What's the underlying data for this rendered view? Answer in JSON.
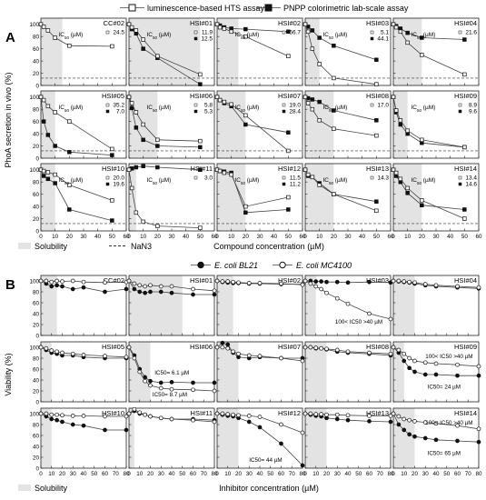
{
  "figure": {
    "panel_a_letter": "A",
    "panel_b_letter": "B",
    "legend_a": {
      "hts": "luminescence-based HTS assay",
      "pnpp": "PNPP colorimetric lab-scale assay"
    },
    "legend_b": {
      "bl21": "E. coli BL21",
      "mc4100": "E. coli MC4100"
    },
    "ylabel_a": "PhoA secretion in vivo (%)",
    "xlabel_a": "Compound concentration (µM)",
    "ylabel_b": "Viability (%)",
    "xlabel_b": "Inhibitor concentration (µM)",
    "solubility_label": "Solubility",
    "nan3_label": "NaN3",
    "colors": {
      "open": "#ffffff",
      "filled": "#111111",
      "shade": "#e3e3e3",
      "line": "#444444"
    }
  },
  "chart_data": [
    {
      "type": "line",
      "panel": "A",
      "ylim": [
        0,
        110
      ],
      "yticks": [
        0,
        20,
        40,
        60,
        80,
        100
      ],
      "xlim": [
        0,
        60
      ],
      "xticks": [
        0,
        10,
        20,
        30,
        40,
        50,
        60
      ],
      "nan3_level": 12,
      "series_names": [
        "luminescence-based HTS assay",
        "PNPP colorimetric lab-scale assay"
      ],
      "subplots": [
        {
          "title": "CC#02",
          "sol": 15,
          "x": [
            0,
            2,
            5,
            10,
            20,
            50
          ],
          "open": [
            100,
            96,
            90,
            78,
            65,
            64
          ],
          "filled": null,
          "ic": [
            "24.5",
            ""
          ]
        },
        {
          "title": "HSI#01",
          "sol": 50,
          "x": [
            0,
            2,
            5,
            10,
            20,
            50
          ],
          "open": [
            100,
            95,
            90,
            75,
            48,
            18
          ],
          "filled": [
            100,
            92,
            85,
            60,
            45,
            2
          ],
          "ic": [
            "11.9",
            "12.5"
          ]
        },
        {
          "title": "HSI#02",
          "sol": 15,
          "x": [
            0,
            2,
            5,
            10,
            20,
            50
          ],
          "open": [
            100,
            95,
            93,
            88,
            80,
            48
          ],
          "filled": [
            100,
            98,
            95,
            93,
            92,
            88
          ],
          "ic": [
            "56.7",
            ""
          ]
        },
        {
          "title": "HSI#03",
          "sol": 10,
          "x": [
            0,
            2,
            5,
            10,
            20,
            50
          ],
          "open": [
            100,
            88,
            60,
            35,
            12,
            2
          ],
          "filled": [
            100,
            96,
            90,
            78,
            65,
            42
          ],
          "ic": [
            "5.1",
            "44.1"
          ]
        },
        {
          "title": "HSI#04",
          "sol": 20,
          "x": [
            0,
            2,
            5,
            10,
            20,
            50
          ],
          "open": [
            100,
            95,
            88,
            70,
            50,
            18
          ],
          "filled": [
            100,
            97,
            93,
            86,
            78,
            75
          ],
          "ic": [
            "21.6",
            ""
          ]
        },
        {
          "title": "HSI#05",
          "sol": 10,
          "x": [
            0,
            2,
            5,
            10,
            20,
            50
          ],
          "open": [
            100,
            95,
            85,
            75,
            60,
            15
          ],
          "filled": [
            100,
            60,
            38,
            20,
            10,
            5
          ],
          "ic": [
            "35.2",
            "7.0"
          ]
        },
        {
          "title": "HSI#06",
          "sol": 20,
          "x": [
            0,
            2,
            5,
            10,
            20,
            50
          ],
          "open": [
            100,
            90,
            75,
            55,
            30,
            28
          ],
          "filled": [
            100,
            82,
            50,
            30,
            20,
            18
          ],
          "ic": [
            "5.8",
            "5.3"
          ]
        },
        {
          "title": "HSI#07",
          "sol": 20,
          "x": [
            0,
            2,
            5,
            10,
            20,
            50
          ],
          "open": [
            100,
            95,
            92,
            88,
            70,
            12
          ],
          "filled": [
            100,
            95,
            90,
            85,
            55,
            42
          ],
          "ic": [
            "19.0",
            "28.4"
          ]
        },
        {
          "title": "HSI#08",
          "sol": 20,
          "x": [
            0,
            2,
            5,
            10,
            20,
            50
          ],
          "open": [
            100,
            90,
            80,
            62,
            48,
            37
          ],
          "filled": [
            100,
            98,
            96,
            92,
            78,
            62
          ],
          "ic": [
            "17.0",
            ""
          ]
        },
        {
          "title": "HSI#09",
          "sol": 10,
          "x": [
            0,
            2,
            5,
            10,
            20,
            50
          ],
          "open": [
            100,
            78,
            62,
            45,
            30,
            18
          ],
          "filled": [
            100,
            75,
            55,
            40,
            25,
            18
          ],
          "ic": [
            "8.9",
            "9.6"
          ]
        },
        {
          "title": "HSI#10",
          "sol": 10,
          "x": [
            0,
            2,
            5,
            10,
            20,
            50
          ],
          "open": [
            100,
            98,
            96,
            92,
            75,
            50
          ],
          "filled": [
            100,
            90,
            85,
            78,
            35,
            17
          ],
          "ic": [
            "20.0",
            "19.6"
          ]
        },
        {
          "title": "HSI#11",
          "sol": 5,
          "x": [
            0,
            2,
            5,
            10,
            20,
            50
          ],
          "open": [
            100,
            70,
            30,
            15,
            8,
            5
          ],
          "filled": [
            100,
            102,
            104,
            106,
            104,
            100
          ],
          "ic": [
            "3.0",
            ""
          ]
        },
        {
          "title": "HSI#12",
          "sol": 20,
          "x": [
            0,
            2,
            5,
            10,
            20,
            50
          ],
          "open": [
            100,
            98,
            95,
            92,
            40,
            55
          ],
          "filled": [
            100,
            98,
            97,
            95,
            30,
            35
          ],
          "ic": [
            "11.5",
            "11.2"
          ]
        },
        {
          "title": "HSI#13",
          "sol": 20,
          "x": [
            0,
            2,
            5,
            10,
            20,
            50
          ],
          "open": [
            100,
            92,
            88,
            75,
            60,
            33
          ],
          "filled": [
            100,
            90,
            88,
            78,
            60,
            48
          ],
          "ic": [
            "14.3",
            ""
          ]
        },
        {
          "title": "HSI#14",
          "sol": 20,
          "x": [
            0,
            2,
            5,
            10,
            20,
            50
          ],
          "open": [
            100,
            95,
            85,
            70,
            50,
            20
          ],
          "filled": [
            100,
            90,
            80,
            62,
            42,
            35
          ],
          "ic": [
            "13.4",
            "14.6"
          ]
        }
      ]
    },
    {
      "type": "line",
      "panel": "B",
      "ylim": [
        0,
        110
      ],
      "yticks": [
        0,
        20,
        40,
        60,
        80,
        100
      ],
      "xlim": [
        0,
        80
      ],
      "xticks": [
        0,
        10,
        20,
        30,
        40,
        50,
        60,
        70,
        80
      ],
      "series_names": [
        "E. coli BL21",
        "E. coli MC4100"
      ],
      "subplots": [
        {
          "title": "CC#02",
          "sol": 15,
          "x": [
            0,
            5,
            10,
            15,
            20,
            30,
            40,
            60,
            80
          ],
          "filled": [
            100,
            95,
            90,
            92,
            90,
            85,
            88,
            80,
            85
          ],
          "open": [
            100,
            100,
            98,
            100,
            99,
            100,
            98,
            97,
            98
          ],
          "ann": []
        },
        {
          "title": "HSI#01",
          "sol": 50,
          "x": [
            0,
            5,
            10,
            15,
            20,
            30,
            40,
            60,
            80
          ],
          "filled": [
            100,
            85,
            80,
            78,
            80,
            80,
            78,
            75,
            75
          ],
          "open": [
            100,
            95,
            92,
            90,
            92,
            90,
            90,
            85,
            82
          ],
          "ann": []
        },
        {
          "title": "HSI#02",
          "sol": 15,
          "x": [
            0,
            5,
            10,
            15,
            20,
            30,
            40,
            60,
            80
          ],
          "filled": [
            100,
            98,
            97,
            96,
            96,
            95,
            95,
            94,
            94
          ],
          "open": [
            100,
            99,
            99,
            98,
            97,
            96,
            96,
            95,
            93
          ],
          "ann": []
        },
        {
          "title": "HSI#03",
          "sol": 10,
          "x": [
            0,
            5,
            10,
            15,
            20,
            30,
            40,
            60,
            80
          ],
          "filled": [
            100,
            100,
            99,
            99,
            98,
            98,
            97,
            98,
            97
          ],
          "open": [
            100,
            95,
            90,
            85,
            78,
            68,
            58,
            40,
            30
          ],
          "ann": [
            {
              "text": "100< IC50 >40 µM",
              "x": 28,
              "y": 22
            }
          ]
        },
        {
          "title": "HSI#04",
          "sol": 20,
          "x": [
            0,
            5,
            10,
            15,
            20,
            30,
            40,
            60,
            80
          ],
          "filled": [
            100,
            99,
            98,
            97,
            95,
            92,
            90,
            88,
            86
          ],
          "open": [
            100,
            100,
            99,
            98,
            97,
            94,
            92,
            90,
            88
          ],
          "ann": []
        },
        {
          "title": "HSI#05",
          "sol": 10,
          "x": [
            0,
            5,
            10,
            15,
            20,
            30,
            40,
            60,
            80
          ],
          "filled": [
            100,
            95,
            90,
            88,
            85,
            85,
            82,
            80,
            80
          ],
          "open": [
            100,
            98,
            94,
            92,
            90,
            88,
            86,
            84,
            82
          ],
          "ann": []
        },
        {
          "title": "HSI#06",
          "sol": 20,
          "x": [
            0,
            5,
            10,
            15,
            20,
            30,
            40,
            60,
            80
          ],
          "filled": [
            100,
            85,
            60,
            45,
            38,
            35,
            36,
            35,
            35
          ],
          "open": [
            100,
            80,
            55,
            38,
            30,
            25,
            23,
            22,
            20
          ],
          "ann": [
            {
              "text": "IC50= 6.1 µM",
              "x": 24,
              "y": 50
            },
            {
              "text": "IC50= 8.7 µM",
              "x": 22,
              "y": 10
            }
          ]
        },
        {
          "title": "HSI#07",
          "sol": 20,
          "x": [
            0,
            5,
            10,
            15,
            20,
            30,
            40,
            60,
            80
          ],
          "filled": [
            100,
            108,
            105,
            90,
            82,
            80,
            82,
            80,
            80
          ],
          "open": [
            100,
            100,
            98,
            92,
            88,
            85,
            84,
            80,
            75
          ],
          "ann": []
        },
        {
          "title": "HSI#08",
          "sol": 20,
          "x": [
            0,
            5,
            10,
            15,
            20,
            30,
            40,
            60,
            80
          ],
          "filled": [
            100,
            100,
            98,
            98,
            96,
            92,
            90,
            88,
            85
          ],
          "open": [
            100,
            100,
            99,
            98,
            97,
            95,
            92,
            90,
            88
          ],
          "ann": []
        },
        {
          "title": "HSI#09",
          "sol": 10,
          "x": [
            0,
            5,
            10,
            15,
            20,
            30,
            40,
            60,
            80
          ],
          "filled": [
            100,
            90,
            75,
            62,
            55,
            50,
            50,
            48,
            48
          ],
          "open": [
            100,
            95,
            88,
            80,
            75,
            72,
            70,
            68,
            65
          ],
          "ann": [
            {
              "text": "100< IC50 >40 µM",
              "x": 30,
              "y": 80
            },
            {
              "text": "IC50= 24 µM",
              "x": 32,
              "y": 24
            }
          ]
        },
        {
          "title": "HSI#10",
          "sol": 10,
          "x": [
            0,
            5,
            10,
            15,
            20,
            30,
            40,
            60,
            80
          ],
          "filled": [
            100,
            95,
            90,
            88,
            85,
            80,
            78,
            70,
            70
          ],
          "open": [
            100,
            100,
            98,
            98,
            97,
            96,
            96,
            95,
            95
          ],
          "ann": []
        },
        {
          "title": "HSI#11",
          "sol": 5,
          "x": [
            0,
            5,
            10,
            15,
            20,
            30,
            40,
            60,
            80
          ],
          "filled": [
            100,
            105,
            100,
            98,
            95,
            92,
            90,
            90,
            88
          ],
          "open": [
            100,
            108,
            102,
            98,
            95,
            92,
            90,
            88,
            85
          ],
          "ann": []
        },
        {
          "title": "HSI#12",
          "sol": 20,
          "x": [
            0,
            5,
            10,
            15,
            20,
            30,
            40,
            60,
            80
          ],
          "filled": [
            100,
            98,
            96,
            95,
            92,
            85,
            75,
            45,
            5
          ],
          "open": [
            100,
            100,
            99,
            98,
            97,
            96,
            94,
            80,
            65
          ],
          "ann": [
            {
              "text": "IC50= 44 µM",
              "x": 30,
              "y": 12
            }
          ]
        },
        {
          "title": "HSI#13",
          "sol": 20,
          "x": [
            0,
            5,
            10,
            15,
            20,
            30,
            40,
            60,
            80
          ],
          "filled": [
            100,
            98,
            96,
            95,
            92,
            90,
            88,
            86,
            85
          ],
          "open": [
            100,
            100,
            99,
            99,
            98,
            98,
            97,
            96,
            96
          ],
          "ann": []
        },
        {
          "title": "HSI#14",
          "sol": 20,
          "x": [
            0,
            5,
            10,
            15,
            20,
            30,
            40,
            60,
            80
          ],
          "filled": [
            100,
            80,
            70,
            62,
            58,
            55,
            52,
            50,
            48
          ],
          "open": [
            100,
            95,
            90,
            88,
            86,
            84,
            82,
            78,
            72
          ],
          "ann": [
            {
              "text": "100< IC50 >40 µM",
              "x": 30,
              "y": 80
            },
            {
              "text": "IC50= 65 µM",
              "x": 32,
              "y": 24
            }
          ]
        }
      ]
    }
  ]
}
